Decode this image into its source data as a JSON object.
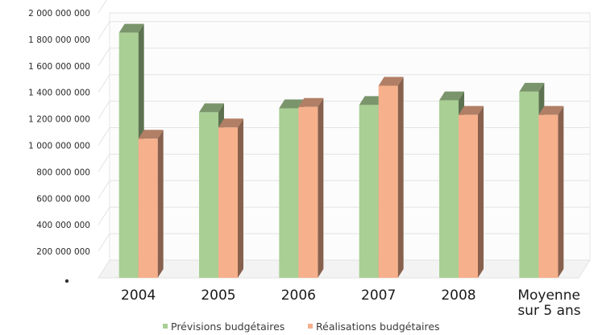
{
  "chart_data": {
    "type": "bar",
    "bar_style": "3d",
    "title": "",
    "xlabel": "",
    "ylabel": "",
    "ylim": [
      0,
      2000000000
    ],
    "y_ticks": [
      0,
      200000000,
      400000000,
      600000000,
      800000000,
      1000000000,
      1200000000,
      1400000000,
      1600000000,
      1800000000,
      2000000000
    ],
    "y_tick_labels": [
      "0",
      "200 000 000",
      "400 000 000",
      "600 000 000",
      "800 000 000",
      "1 000 000 000",
      "1 200 000 000",
      "1 400 000 000",
      "1 600 000 000",
      "1 800 000 000",
      "2 000 000 000"
    ],
    "categories": [
      "2004",
      "2005",
      "2006",
      "2007",
      "2008",
      "Moyenne sur 5 ans"
    ],
    "category_lines": [
      [
        "2004"
      ],
      [
        "2005"
      ],
      [
        "2006"
      ],
      [
        "2007"
      ],
      [
        "2008"
      ],
      [
        "Moyenne",
        "sur 5 ans"
      ]
    ],
    "grid": true,
    "legend_position": "bottom",
    "series": [
      {
        "name": "Prévisions budgétaires",
        "color": "#a9cf94",
        "values": [
          1850000000,
          1250000000,
          1280000000,
          1305000000,
          1340000000,
          1405000000
        ]
      },
      {
        "name": "Réalisations budgétaires",
        "color": "#f6b08c",
        "values": [
          1050000000,
          1135000000,
          1290000000,
          1450000000,
          1230000000,
          1230000000
        ]
      }
    ]
  }
}
